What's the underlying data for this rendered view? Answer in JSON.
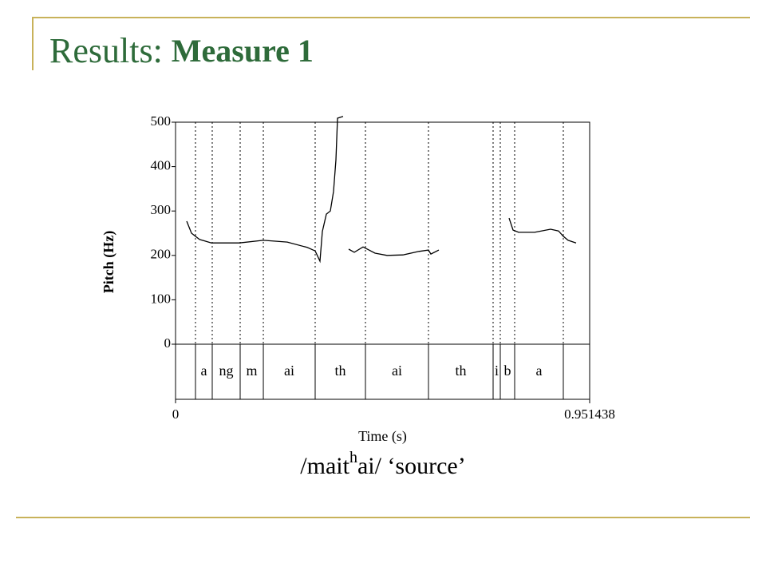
{
  "slide": {
    "title": [
      "Results:",
      "Measure 1"
    ],
    "caption": [
      "/mait",
      "h",
      "ai/",
      "‘source’"
    ]
  },
  "chart_data": {
    "type": "line",
    "x_label": "Time (s)",
    "y_label": "Pitch (Hz)",
    "xlim": [
      0,
      0.951438
    ],
    "xticks": [
      0,
      0.951438
    ],
    "ylim": [
      0,
      500
    ],
    "yticks": [
      0,
      100,
      200,
      300,
      400,
      500
    ],
    "color": "#000000",
    "x": [
      0.0257,
      0.0367,
      0.055,
      0.0825,
      0.1467,
      0.2017,
      0.2567,
      0.3025,
      0.3208,
      0.3318,
      0.3373,
      0.3465,
      0.3556,
      0.363,
      0.3685,
      0.3721,
      0.385,
      null,
      0.3978,
      0.4106,
      0.4308,
      0.4583,
      0.4858,
      0.5225,
      0.5591,
      0.5811,
      0.5866,
      0.6049,
      null,
      0.7663,
      0.7755,
      0.7883,
      0.825,
      0.8617,
      0.88,
      0.8909,
      0.9019,
      0.9203
    ],
    "values": [
      277,
      250,
      236,
      228,
      228,
      234,
      230,
      218,
      210,
      187,
      254,
      293,
      300,
      344,
      415,
      509,
      513,
      null,
      214,
      207,
      219,
      205,
      200,
      201,
      209,
      212,
      203,
      212,
      null,
      284,
      257,
      252,
      252,
      259,
      255,
      243,
      234,
      228
    ],
    "segment_boundaries": [
      0.0458,
      0.0843,
      0.1485,
      0.2017,
      0.3208,
      0.4363,
      0.5811,
      0.7296,
      0.7461,
      0.7791,
      0.8909
    ],
    "segment_labels": [
      "a",
      "ng",
      "m",
      "ai",
      "th",
      "ai",
      "th",
      "i",
      "b",
      "a"
    ]
  }
}
